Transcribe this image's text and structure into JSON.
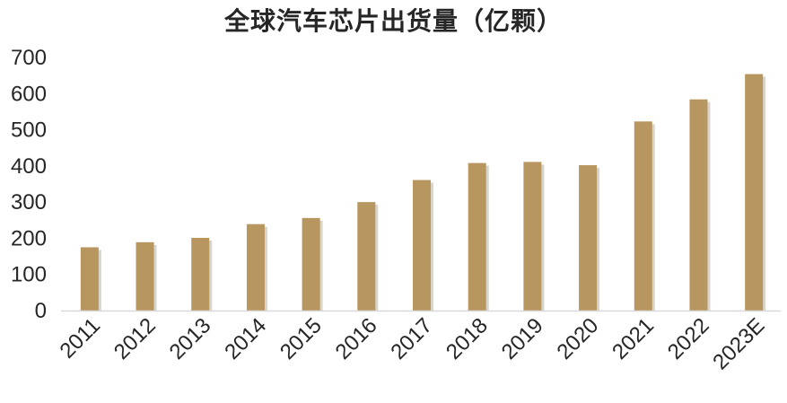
{
  "chart_data": {
    "type": "bar",
    "title": "全球汽车芯片出货量（亿颗）",
    "categories": [
      "2011",
      "2012",
      "2013",
      "2014",
      "2015",
      "2016",
      "2017",
      "2018",
      "2019",
      "2020",
      "2021",
      "2022",
      "2023E"
    ],
    "values": [
      175,
      189,
      201,
      239,
      256,
      300,
      361,
      408,
      411,
      402,
      523,
      584,
      654
    ],
    "ylim": [
      0,
      700
    ],
    "yticks": [
      0,
      100,
      200,
      300,
      400,
      500,
      600,
      700
    ],
    "xlabel": "",
    "ylabel": "",
    "grid": false,
    "bar_color": "#B8965F",
    "bar_shadow_color": "#D9D4CC",
    "axis_color": "#D9D9D9"
  }
}
